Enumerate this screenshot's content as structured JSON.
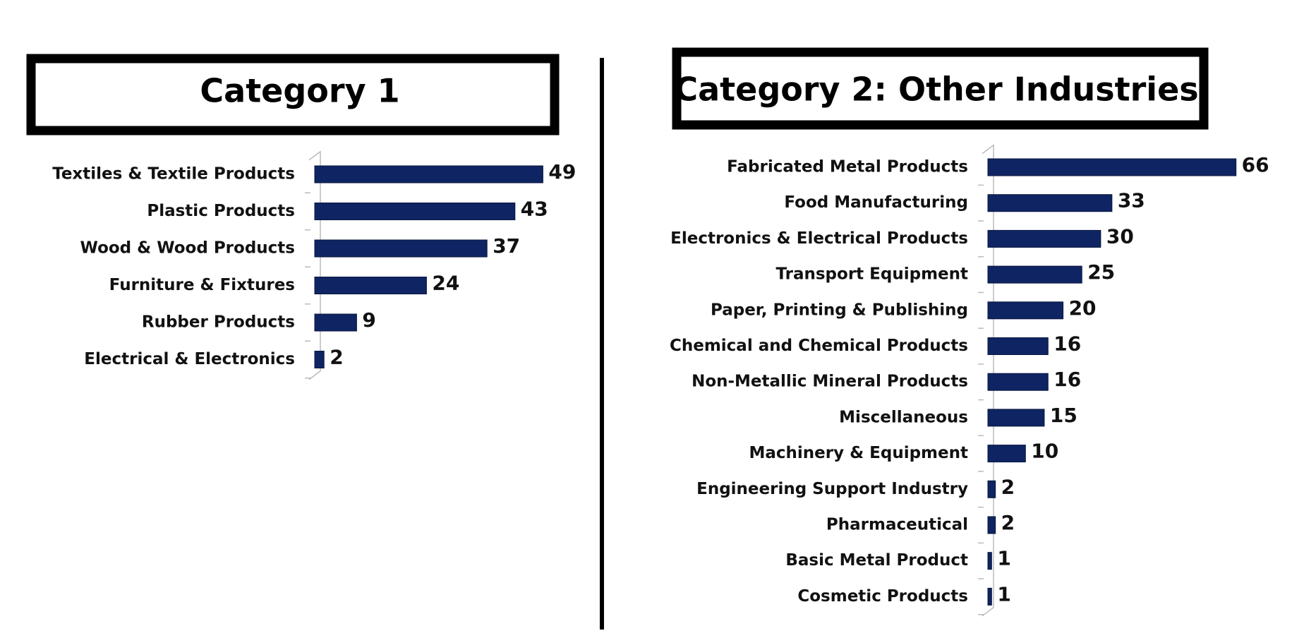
{
  "chart_data": [
    {
      "type": "bar",
      "orientation": "horizontal",
      "title": "Category 1",
      "color": "#0f2462",
      "categories": [
        "Textiles & Textile Products",
        "Plastic Products",
        "Wood & Wood Products",
        "Furniture & Fixtures",
        "Rubber Products",
        "Electrical & Electronics"
      ],
      "values": [
        49,
        43,
        37,
        24,
        9,
        2
      ],
      "xlim": [
        0,
        50
      ]
    },
    {
      "type": "bar",
      "orientation": "horizontal",
      "title": "Category 2: Other Industries",
      "color": "#0f2462",
      "categories": [
        "Fabricated Metal Products",
        "Food Manufacturing",
        "Electronics & Electrical Products",
        "Transport Equipment",
        "Paper, Printing & Publishing",
        "Chemical and Chemical Products",
        "Non-Metallic Mineral Products",
        "Miscellaneous",
        "Machinery & Equipment",
        "Engineering Support Industry",
        "Pharmaceutical",
        "Basic Metal Product",
        "Cosmetic Products"
      ],
      "values": [
        66,
        33,
        30,
        25,
        20,
        16,
        16,
        15,
        10,
        2,
        2,
        1,
        1
      ],
      "xlim": [
        0,
        70
      ]
    }
  ]
}
